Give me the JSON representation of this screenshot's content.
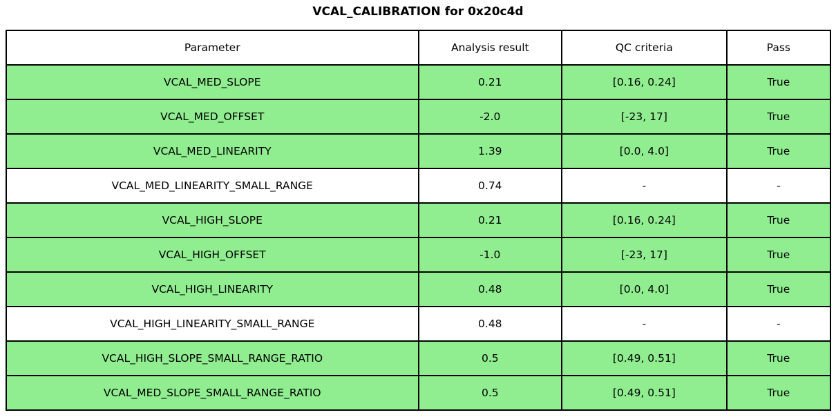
{
  "title": "VCAL_CALIBRATION for 0x20c4d",
  "colors": {
    "pass_green": "#90EE90",
    "row_white": "#FFFFFF",
    "border": "#000000",
    "text": "#000000"
  },
  "table": {
    "columns": [
      "Parameter",
      "Analysis result",
      "QC criteria",
      "Pass"
    ],
    "rows": [
      {
        "parameter": "VCAL_MED_SLOPE",
        "result": "0.21",
        "criteria": "[0.16, 0.24]",
        "pass": "True",
        "highlight": true
      },
      {
        "parameter": "VCAL_MED_OFFSET",
        "result": "-2.0",
        "criteria": "[-23, 17]",
        "pass": "True",
        "highlight": true
      },
      {
        "parameter": "VCAL_MED_LINEARITY",
        "result": "1.39",
        "criteria": "[0.0, 4.0]",
        "pass": "True",
        "highlight": true
      },
      {
        "parameter": "VCAL_MED_LINEARITY_SMALL_RANGE",
        "result": "0.74",
        "criteria": "-",
        "pass": "-",
        "highlight": false
      },
      {
        "parameter": "VCAL_HIGH_SLOPE",
        "result": "0.21",
        "criteria": "[0.16, 0.24]",
        "pass": "True",
        "highlight": true
      },
      {
        "parameter": "VCAL_HIGH_OFFSET",
        "result": "-1.0",
        "criteria": "[-23, 17]",
        "pass": "True",
        "highlight": true
      },
      {
        "parameter": "VCAL_HIGH_LINEARITY",
        "result": "0.48",
        "criteria": "[0.0, 4.0]",
        "pass": "True",
        "highlight": true
      },
      {
        "parameter": "VCAL_HIGH_LINEARITY_SMALL_RANGE",
        "result": "0.48",
        "criteria": "-",
        "pass": "-",
        "highlight": false
      },
      {
        "parameter": "VCAL_HIGH_SLOPE_SMALL_RANGE_RATIO",
        "result": "0.5",
        "criteria": "[0.49, 0.51]",
        "pass": "True",
        "highlight": true
      },
      {
        "parameter": "VCAL_MED_SLOPE_SMALL_RANGE_RATIO",
        "result": "0.5",
        "criteria": "[0.49, 0.51]",
        "pass": "True",
        "highlight": true
      }
    ]
  },
  "chart_data": {
    "type": "table",
    "title": "VCAL_CALIBRATION for 0x20c4d",
    "columns": [
      "Parameter",
      "Analysis result",
      "QC criteria",
      "Pass"
    ],
    "rows": [
      [
        "VCAL_MED_SLOPE",
        "0.21",
        "[0.16, 0.24]",
        "True"
      ],
      [
        "VCAL_MED_OFFSET",
        "-2.0",
        "[-23, 17]",
        "True"
      ],
      [
        "VCAL_MED_LINEARITY",
        "1.39",
        "[0.0, 4.0]",
        "True"
      ],
      [
        "VCAL_MED_LINEARITY_SMALL_RANGE",
        "0.74",
        "-",
        "-"
      ],
      [
        "VCAL_HIGH_SLOPE",
        "0.21",
        "[0.16, 0.24]",
        "True"
      ],
      [
        "VCAL_HIGH_OFFSET",
        "-1.0",
        "[-23, 17]",
        "True"
      ],
      [
        "VCAL_HIGH_LINEARITY",
        "0.48",
        "[0.0, 4.0]",
        "True"
      ],
      [
        "VCAL_HIGH_LINEARITY_SMALL_RANGE",
        "0.48",
        "-",
        "-"
      ],
      [
        "VCAL_HIGH_SLOPE_SMALL_RANGE_RATIO",
        "0.5",
        "[0.49, 0.51]",
        "True"
      ],
      [
        "VCAL_MED_SLOPE_SMALL_RANGE_RATIO",
        "0.5",
        "[0.49, 0.51]",
        "True"
      ]
    ],
    "row_highlight_green": [
      true,
      true,
      true,
      false,
      true,
      true,
      true,
      false,
      true,
      true
    ],
    "legend_position": "none",
    "grid": "full-cell-borders"
  }
}
